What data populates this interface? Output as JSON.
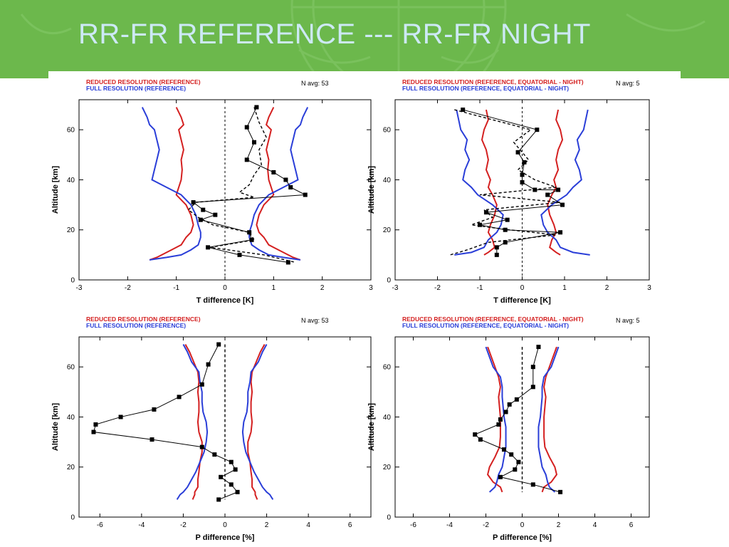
{
  "slide": {
    "title": "RR-FR  REFERENCE --- RR-FR NIGHT",
    "header_color": "#6cb84c",
    "title_color": "#cde9f6"
  },
  "colors": {
    "reduced": "#d42020",
    "full": "#2a3ed8",
    "difference": "#000000"
  },
  "chart_data": [
    {
      "type": "line",
      "legend": [
        "REDUCED RESOLUTION (REFERENCE)",
        "FULL RESOLUTION (REFERENCE)"
      ],
      "navg": "N avg: 53",
      "xlabel": "T difference [K]",
      "ylabel": "Altitude [km]",
      "xlim": [
        -3,
        3
      ],
      "ylim": [
        0,
        72
      ],
      "xticks": [
        -3,
        -2,
        -1,
        0,
        1,
        2,
        3
      ],
      "yticks": [
        0,
        20,
        40,
        60
      ],
      "series": [
        {
          "role": "reduced",
          "style": "mirrored",
          "x": [
            1.0,
            0.9,
            0.85,
            0.95,
            0.9,
            0.85,
            0.9,
            0.88,
            0.9,
            0.95,
            1.0,
            0.8,
            0.7,
            0.65,
            0.7,
            0.8,
            0.9,
            1.1,
            1.3,
            1.4,
            1.55
          ],
          "y": [
            69,
            65,
            62,
            60,
            56,
            52,
            48,
            44,
            40,
            37,
            34,
            30,
            26,
            22,
            19,
            17,
            14,
            12,
            10,
            9,
            8
          ]
        },
        {
          "role": "full",
          "style": "mirrored",
          "x": [
            1.7,
            1.6,
            1.55,
            1.45,
            1.4,
            1.35,
            1.4,
            1.45,
            1.5,
            1.2,
            0.9,
            0.7,
            0.6,
            0.55,
            0.5,
            0.5,
            0.55,
            0.7,
            0.9,
            1.2,
            1.55
          ],
          "y": [
            69,
            65,
            62,
            60,
            56,
            52,
            48,
            44,
            40,
            37,
            34,
            30,
            26,
            22,
            19,
            17,
            14,
            12,
            10,
            9,
            8
          ]
        },
        {
          "role": "difference",
          "style": "solid-markers",
          "x": [
            0.65,
            0.45,
            0.6,
            0.45,
            1.0,
            1.25,
            1.35,
            1.65,
            -0.65,
            -0.45,
            -0.2,
            -0.5,
            0.5,
            0.55,
            -0.35,
            0.3,
            1.3
          ],
          "y": [
            69,
            61,
            55,
            48,
            43,
            40,
            37,
            34,
            31,
            28,
            26,
            24,
            19,
            16,
            13,
            10,
            7
          ]
        },
        {
          "role": "difference",
          "style": "dashed",
          "x": [
            0.6,
            0.7,
            0.85,
            0.7,
            0.75,
            0.6,
            0.5,
            0.3,
            0.6,
            -0.6,
            -0.75,
            -0.55,
            -0.25,
            0.5,
            0.6,
            -0.3,
            0.8,
            1.45
          ],
          "y": [
            69,
            63,
            57,
            52,
            46,
            42,
            38,
            35,
            33,
            31,
            28,
            25,
            22,
            19,
            16,
            13,
            10,
            7
          ]
        }
      ]
    },
    {
      "type": "line",
      "legend": [
        "REDUCED RESOLUTION (REFERENCE, EQUATORIAL - NIGHT)",
        "FULL RESOLUTION (REFERENCE, EQUATORIAL - NIGHT)"
      ],
      "navg": "N avg:  5",
      "xlabel": "T difference [K]",
      "ylabel": "Altitude [km]",
      "xlim": [
        -3,
        3
      ],
      "ylim": [
        0,
        72
      ],
      "xticks": [
        -3,
        -2,
        -1,
        0,
        1,
        2,
        3
      ],
      "yticks": [
        0,
        20,
        40,
        60
      ],
      "series": [
        {
          "role": "reduced",
          "style": "mirrored",
          "x": [
            0.85,
            0.8,
            0.9,
            0.95,
            0.85,
            0.8,
            0.85,
            0.75,
            0.8,
            0.7,
            0.6,
            0.65,
            0.75,
            0.8,
            0.7,
            0.65,
            0.8,
            0.9
          ],
          "y": [
            68,
            64,
            60,
            56,
            52,
            48,
            44,
            40,
            37,
            34,
            30,
            26,
            22,
            19,
            16,
            13,
            11,
            10
          ]
        },
        {
          "role": "full",
          "style": "mirrored",
          "x": [
            1.55,
            1.5,
            1.45,
            1.3,
            1.35,
            1.25,
            1.35,
            1.4,
            1.2,
            1.05,
            0.7,
            0.45,
            0.5,
            0.6,
            0.8,
            0.9,
            1.2,
            1.6
          ],
          "y": [
            68,
            64,
            60,
            56,
            52,
            48,
            44,
            40,
            37,
            34,
            30,
            26,
            22,
            19,
            16,
            13,
            11,
            10
          ]
        },
        {
          "role": "difference",
          "style": "solid-markers",
          "x": [
            -1.4,
            0.35,
            -0.1,
            0.05,
            0.0,
            0.0,
            0.3,
            0.85,
            0.6,
            0.95,
            -0.85,
            -0.35,
            -1.0,
            -0.4,
            0.9,
            -0.4,
            -0.6,
            -0.6
          ],
          "y": [
            68,
            60,
            51,
            47,
            42,
            39,
            36,
            36,
            34,
            30,
            27,
            24,
            22,
            20,
            19,
            15,
            13,
            10
          ]
        },
        {
          "role": "difference",
          "style": "dashed",
          "x": [
            -1.6,
            0.2,
            -0.2,
            0.15,
            -0.1,
            0.3,
            0.8,
            -1.0,
            0.9,
            -0.9,
            -0.7,
            -1.2,
            -0.3,
            0.8,
            -0.8,
            -1.3,
            -1.7
          ],
          "y": [
            68,
            60,
            55,
            48,
            44,
            40,
            37,
            34,
            31,
            28,
            25,
            22,
            20,
            18,
            15,
            12,
            10
          ]
        }
      ]
    },
    {
      "type": "line",
      "legend": [
        "REDUCED RESOLUTION (REFERENCE)",
        "FULL RESOLUTION (REFERENCE)"
      ],
      "navg": "N avg: 53",
      "xlabel": "P difference [%]",
      "ylabel": "Altitude [km]",
      "xlim": [
        -7,
        7
      ],
      "ylim": [
        0,
        72
      ],
      "xticks": [
        -6,
        -4,
        -2,
        0,
        2,
        4,
        6
      ],
      "yticks": [
        0,
        20,
        40,
        60
      ],
      "series": [
        {
          "role": "reduced",
          "style": "mirrored",
          "x": [
            1.9,
            1.7,
            1.5,
            1.3,
            1.25,
            1.3,
            1.25,
            1.25,
            1.3,
            1.25,
            1.1,
            1.1,
            1.2,
            1.25,
            1.3,
            1.3,
            1.45,
            1.45,
            1.55
          ],
          "y": [
            69,
            66,
            62,
            58,
            54,
            50,
            46,
            42,
            38,
            34,
            30,
            26,
            22,
            18,
            15,
            12,
            10,
            9,
            7
          ]
        },
        {
          "role": "full",
          "style": "mirrored",
          "x": [
            2.0,
            1.8,
            1.6,
            1.25,
            1.2,
            1.1,
            1.1,
            1.05,
            0.9,
            0.85,
            0.9,
            1.0,
            1.2,
            1.4,
            1.6,
            1.8,
            2.0,
            2.15,
            2.3
          ],
          "y": [
            69,
            66,
            62,
            58,
            54,
            50,
            46,
            42,
            38,
            34,
            30,
            26,
            22,
            18,
            15,
            12,
            10,
            9,
            7
          ]
        },
        {
          "role": "difference",
          "style": "solid-markers",
          "x": [
            -0.3,
            -0.8,
            -1.1,
            -2.2,
            -3.4,
            -5.0,
            -6.2,
            -6.3,
            -3.5,
            -1.1,
            -0.5,
            0.3,
            0.5,
            -0.2,
            0.3,
            0.6,
            -0.3
          ],
          "y": [
            69,
            61,
            53,
            48,
            43,
            40,
            37,
            34,
            31,
            28,
            25,
            22,
            19,
            16,
            13,
            10,
            7
          ]
        },
        {
          "role": "difference",
          "style": "dashed-zero",
          "x": [
            0,
            0
          ],
          "y": [
            69,
            7
          ]
        }
      ]
    },
    {
      "type": "line",
      "legend": [
        "REDUCED RESOLUTION (REFERENCE, EQUATORIAL - NIGHT)",
        "FULL RESOLUTION (REFERENCE, EQUATORIAL - NIGHT)"
      ],
      "navg": "N avg:  5",
      "xlabel": "P difference [%]",
      "ylabel": "Altitude [km]",
      "xlim": [
        -7,
        7
      ],
      "ylim": [
        0,
        72
      ],
      "xticks": [
        -6,
        -4,
        -2,
        0,
        2,
        4,
        6
      ],
      "yticks": [
        0,
        20,
        40,
        60
      ],
      "series": [
        {
          "role": "reduced",
          "style": "mirrored",
          "x": [
            1.9,
            1.7,
            1.5,
            1.3,
            1.2,
            1.3,
            1.25,
            1.2,
            1.2,
            1.2,
            1.25,
            1.5,
            1.8,
            1.9,
            1.6,
            1.2,
            1.1
          ],
          "y": [
            68,
            64,
            60,
            56,
            52,
            48,
            44,
            40,
            36,
            32,
            28,
            24,
            20,
            17,
            14,
            12,
            10
          ]
        },
        {
          "role": "full",
          "style": "mirrored",
          "x": [
            2.0,
            1.8,
            1.6,
            1.2,
            1.1,
            1.1,
            1.05,
            1.0,
            0.9,
            0.9,
            0.9,
            1.0,
            1.1,
            1.3,
            1.4,
            1.5,
            1.8
          ],
          "y": [
            68,
            64,
            60,
            56,
            52,
            48,
            44,
            40,
            36,
            32,
            28,
            24,
            20,
            17,
            14,
            12,
            10
          ]
        },
        {
          "role": "difference",
          "style": "solid-markers",
          "x": [
            0.9,
            0.6,
            0.6,
            -0.3,
            -0.7,
            -0.9,
            -1.2,
            -1.3,
            -2.6,
            -2.3,
            -1.0,
            -0.6,
            -0.2,
            -0.4,
            -1.2,
            0.6,
            2.1
          ],
          "y": [
            68,
            60,
            52,
            47,
            45,
            42,
            39,
            37,
            33,
            31,
            27,
            25,
            22,
            19,
            16,
            13,
            10
          ]
        },
        {
          "role": "difference",
          "style": "dashed-zero",
          "x": [
            0,
            0
          ],
          "y": [
            68,
            10
          ]
        }
      ]
    }
  ]
}
